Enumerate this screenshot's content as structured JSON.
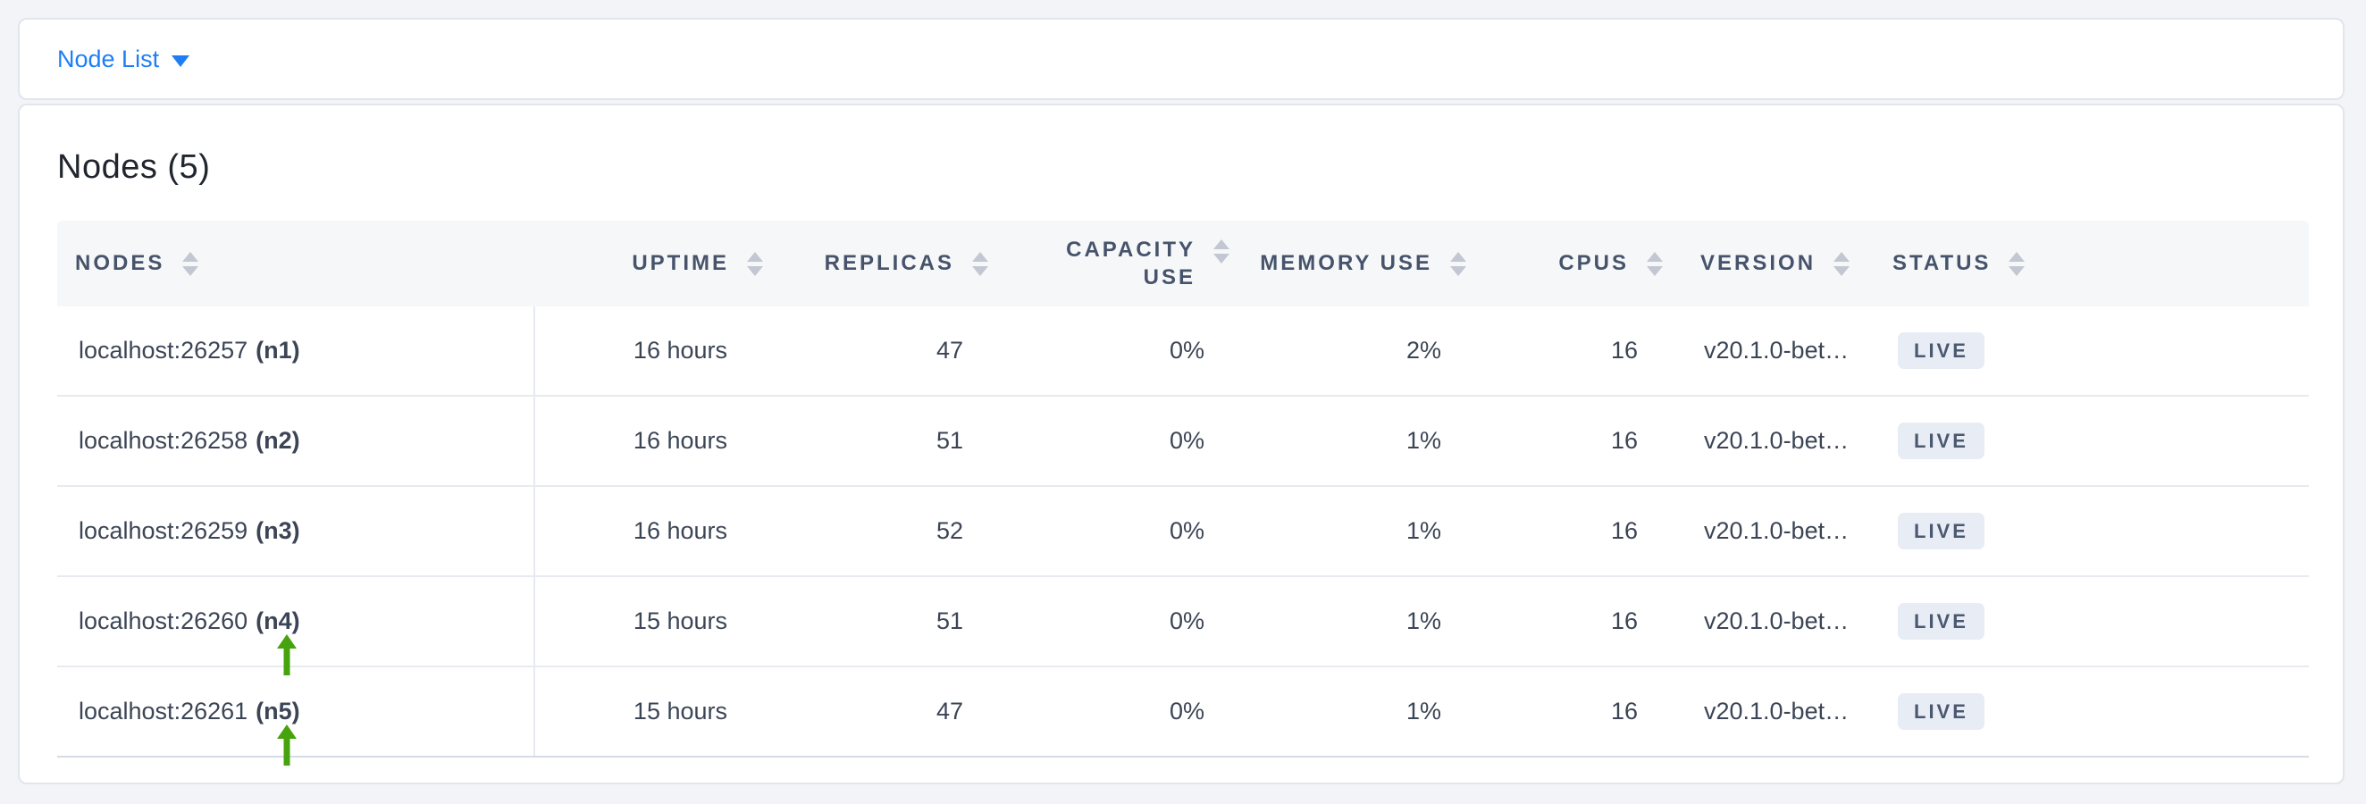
{
  "topbar": {
    "dropdown_label": "Node List"
  },
  "panel": {
    "title": "Nodes (5)"
  },
  "table": {
    "columns": [
      {
        "key": "node",
        "label": "NODES"
      },
      {
        "key": "uptime",
        "label": "UPTIME"
      },
      {
        "key": "replicas",
        "label": "REPLICAS"
      },
      {
        "key": "capacity_use",
        "label": "CAPACITY USE"
      },
      {
        "key": "memory_use",
        "label": "MEMORY USE"
      },
      {
        "key": "cpus",
        "label": "CPUS"
      },
      {
        "key": "version",
        "label": "VERSION"
      },
      {
        "key": "status",
        "label": "STATUS"
      }
    ],
    "rows": [
      {
        "node_address": "localhost:26257",
        "node_id": "(n1)",
        "uptime": "16 hours",
        "replicas": "47",
        "capacity_use": "0%",
        "memory_use": "2%",
        "cpus": "16",
        "version": "v20.1.0-bet…",
        "status": "LIVE",
        "has_arrow": false
      },
      {
        "node_address": "localhost:26258",
        "node_id": "(n2)",
        "uptime": "16 hours",
        "replicas": "51",
        "capacity_use": "0%",
        "memory_use": "1%",
        "cpus": "16",
        "version": "v20.1.0-bet…",
        "status": "LIVE",
        "has_arrow": false
      },
      {
        "node_address": "localhost:26259",
        "node_id": "(n3)",
        "uptime": "16 hours",
        "replicas": "52",
        "capacity_use": "0%",
        "memory_use": "1%",
        "cpus": "16",
        "version": "v20.1.0-bet…",
        "status": "LIVE",
        "has_arrow": false
      },
      {
        "node_address": "localhost:26260",
        "node_id": "(n4)",
        "uptime": "15 hours",
        "replicas": "51",
        "capacity_use": "0%",
        "memory_use": "1%",
        "cpus": "16",
        "version": "v20.1.0-bet…",
        "status": "LIVE",
        "has_arrow": true
      },
      {
        "node_address": "localhost:26261",
        "node_id": "(n5)",
        "uptime": "15 hours",
        "replicas": "47",
        "capacity_use": "0%",
        "memory_use": "1%",
        "cpus": "16",
        "version": "v20.1.0-bet…",
        "status": "LIVE",
        "has_arrow": true
      }
    ]
  },
  "colors": {
    "accent_blue": "#1e7ef6",
    "arrow_green": "#47a30d",
    "badge_bg": "#e8ecf4",
    "header_text": "#46536a",
    "body_text": "#3b4555",
    "page_bg": "#f2f4f8"
  }
}
